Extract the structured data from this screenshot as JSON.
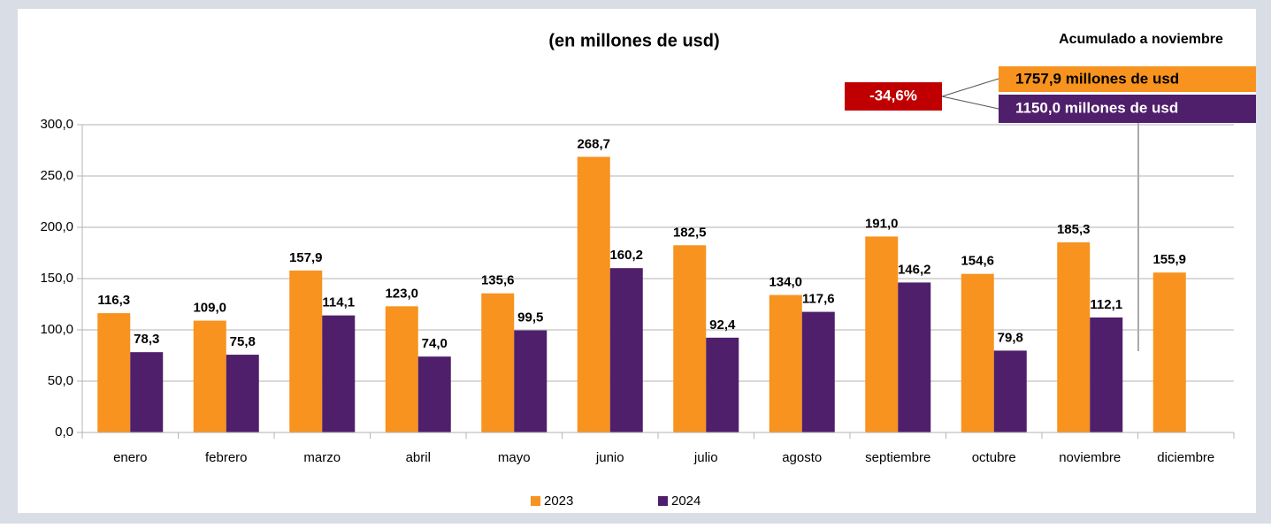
{
  "chart_data": {
    "type": "bar",
    "title": "(en millones de usd)",
    "categories": [
      "enero",
      "febrero",
      "marzo",
      "abril",
      "mayo",
      "junio",
      "julio",
      "agosto",
      "septiembre",
      "octubre",
      "noviembre",
      "diciembre"
    ],
    "series": [
      {
        "name": "2023",
        "color": "#f7931e",
        "values": [
          116.3,
          109.0,
          157.9,
          123.0,
          135.6,
          268.7,
          182.5,
          134.0,
          191.0,
          154.6,
          185.3,
          155.9
        ],
        "value_labels": [
          "116,3",
          "109,0",
          "157,9",
          "123,0",
          "135,6",
          "268,7",
          "182,5",
          "134,0",
          "191,0",
          "154,6",
          "185,3",
          "155,9"
        ]
      },
      {
        "name": "2024",
        "color": "#4f1f6b",
        "values": [
          78.3,
          75.8,
          114.1,
          74.0,
          99.5,
          160.2,
          92.4,
          117.6,
          146.2,
          79.8,
          112.1,
          null
        ],
        "value_labels": [
          "78,3",
          "75,8",
          "114,1",
          "74,0",
          "99,5",
          "160,2",
          "92,4",
          "117,6",
          "146,2",
          "79,8",
          "112,1",
          null
        ]
      }
    ],
    "ylim": [
      0,
      300
    ],
    "yticks": [
      {
        "value": 0,
        "label": "0,0"
      },
      {
        "value": 50,
        "label": "50,0"
      },
      {
        "value": 100,
        "label": "100,0"
      },
      {
        "value": 150,
        "label": "150,0"
      },
      {
        "value": 200,
        "label": "200,0"
      },
      {
        "value": 250,
        "label": "250,0"
      },
      {
        "value": 300,
        "label": "300,0"
      }
    ],
    "grid": true,
    "legend": "bottom",
    "annotations": {
      "heading": "Acumulado a noviembre",
      "total_2023": "1757,9 millones de usd",
      "total_2024": "1150,0 millones de usd",
      "change": "-34,6%"
    }
  }
}
